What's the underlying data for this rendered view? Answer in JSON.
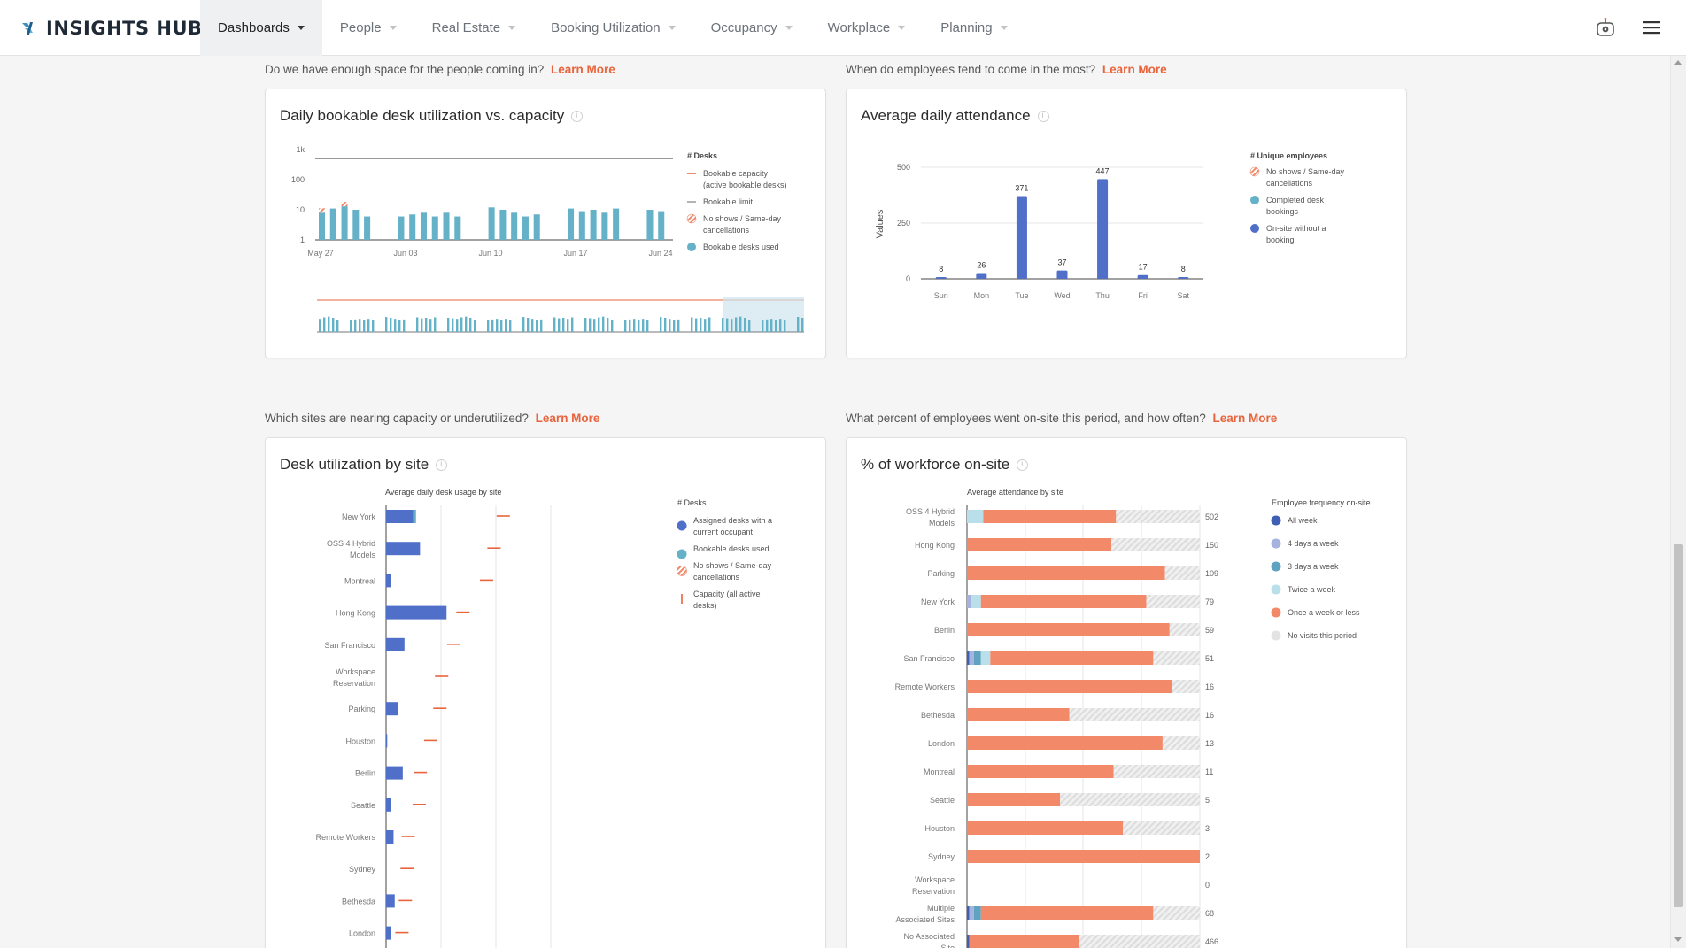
{
  "app": {
    "brand": "INSIGHTS HUB"
  },
  "nav": {
    "items": [
      {
        "label": "Dashboards",
        "active": true
      },
      {
        "label": "People",
        "active": false
      },
      {
        "label": "Real Estate",
        "active": false
      },
      {
        "label": "Booking Utilization",
        "active": false
      },
      {
        "label": "Occupancy",
        "active": false
      },
      {
        "label": "Workplace",
        "active": false
      },
      {
        "label": "Planning",
        "active": false
      }
    ]
  },
  "colors": {
    "accent": "#e8643c",
    "blue": "#4f6fc9",
    "teal": "#64b1c8",
    "orange": "#f08a6c",
    "gray": "#d8d8d8"
  },
  "sections": [
    {
      "question": "Do we have enough space for the people coming in?",
      "learn_more": "Learn More"
    },
    {
      "question": "When do employees tend to come in the most?",
      "learn_more": "Learn More"
    },
    {
      "question": "Which sites are nearing capacity or underutilized?",
      "learn_more": "Learn More"
    },
    {
      "question": "What percent of employees went on-site this period, and how often?",
      "learn_more": "Learn More"
    }
  ],
  "cards": {
    "desk_util": {
      "title": "Daily bookable desk utilization vs. capacity"
    },
    "attendance": {
      "title": "Average daily attendance"
    },
    "by_site": {
      "title": "Desk utilization by site"
    },
    "workforce": {
      "title": "% of workforce on-site"
    }
  },
  "chart_data": [
    {
      "type": "bar",
      "title": "Daily bookable desk utilization vs. capacity",
      "yscale": "log",
      "y_ticks": [
        "1k",
        "100",
        "10",
        "1"
      ],
      "x_ticks": [
        "May 27",
        "Jun 03",
        "Jun 10",
        "Jun 17",
        "Jun 24"
      ],
      "legend_title": "# Desks",
      "legend": [
        "Bookable capacity (active bookable desks)",
        "Bookable limit",
        "No shows / Same-day cancellations",
        "Bookable desks used"
      ],
      "series": [
        {
          "name": "Bookable desks used",
          "values": [
            8,
            11,
            13,
            10,
            6,
            0,
            0,
            6,
            7,
            8,
            6,
            8,
            6,
            0,
            0,
            12,
            10,
            8,
            6,
            7,
            0,
            0,
            11,
            9,
            10,
            8,
            11,
            0,
            0,
            10,
            9
          ]
        },
        {
          "name": "No shows / Same-day cancellations",
          "values": [
            1,
            0,
            2,
            0,
            0,
            0,
            0,
            0,
            0,
            0,
            0,
            0,
            0,
            0,
            0,
            0,
            0,
            0,
            0,
            0,
            0,
            0,
            0,
            0,
            0,
            0,
            0,
            0,
            0,
            0,
            0
          ]
        },
        {
          "name": "Bookable limit",
          "values": [
            500
          ]
        }
      ]
    },
    {
      "type": "bar",
      "title": "Average daily attendance",
      "ylabel": "Values",
      "ylim": [
        0,
        500
      ],
      "y_ticks": [
        "500",
        "250",
        "0"
      ],
      "categories": [
        "Sun",
        "Mon",
        "Tue",
        "Wed",
        "Thu",
        "Fri",
        "Sat"
      ],
      "values": [
        8,
        26,
        371,
        37,
        447,
        17,
        8
      ],
      "data_labels": [
        "8",
        "26",
        "371",
        "37",
        "447",
        "17",
        "8"
      ],
      "legend_title": "# Unique employees",
      "legend": [
        "No shows / Same-day cancellations",
        "Completed desk bookings",
        "On-site without a booking"
      ]
    },
    {
      "type": "bar",
      "title": "Average daily desk usage by site",
      "categories": [
        "New York",
        "OSS 4 Hybrid Models",
        "Montreal",
        "Hong Kong",
        "San Francisco",
        "Workspace Reservation",
        "Parking",
        "Houston",
        "Berlin",
        "Seattle",
        "Remote Workers",
        "Sydney",
        "Bethesda",
        "London"
      ],
      "series": [
        {
          "name": "Assigned desks with a current occupant",
          "values": [
            47,
            59,
            8,
            105,
            32,
            0,
            20,
            2,
            29,
            8,
            13,
            0,
            15,
            8
          ]
        },
        {
          "name": "Bookable desks used",
          "values": [
            5,
            0,
            0,
            0,
            0,
            0,
            0,
            0,
            0,
            0,
            0,
            0,
            0,
            0
          ]
        },
        {
          "name": "Capacity (all active desks)",
          "values": [
            192,
            176,
            163,
            122,
            106,
            85,
            82,
            66,
            48,
            46,
            27,
            25,
            22,
            16
          ]
        }
      ],
      "legend_title": "# Desks",
      "legend": [
        "Assigned desks with a current occupant",
        "Bookable desks used",
        "No shows / Same-day cancellations",
        "Capacity (all active desks)"
      ]
    },
    {
      "type": "bar",
      "title": "Average attendance by site",
      "stacked": "percent",
      "categories": [
        {
          "name": "OSS 4 Hybrid Models",
          "total": "502"
        },
        {
          "name": "Hong Kong",
          "total": "150"
        },
        {
          "name": "Parking",
          "total": "109"
        },
        {
          "name": "New York",
          "total": "79"
        },
        {
          "name": "Berlin",
          "total": "59"
        },
        {
          "name": "San Francisco",
          "total": "51"
        },
        {
          "name": "Remote Workers",
          "total": "16"
        },
        {
          "name": "Bethesda",
          "total": "16"
        },
        {
          "name": "London",
          "total": "13"
        },
        {
          "name": "Montreal",
          "total": "11"
        },
        {
          "name": "Seattle",
          "total": "5"
        },
        {
          "name": "Houston",
          "total": "3"
        },
        {
          "name": "Sydney",
          "total": "2"
        },
        {
          "name": "Workspace Reservation",
          "total": "0"
        },
        {
          "name": "Multiple Associated Sites",
          "total": "68"
        },
        {
          "name": "No Associated Site",
          "total": "466"
        }
      ],
      "series": [
        {
          "name": "All week",
          "values": [
            0,
            0,
            0,
            0,
            0,
            1,
            0,
            0,
            0,
            0,
            0,
            0,
            0,
            0,
            1,
            1
          ]
        },
        {
          "name": "4 days a week",
          "values": [
            0,
            0,
            0,
            2,
            0,
            2,
            0,
            0,
            0,
            0,
            0,
            0,
            0,
            0,
            2,
            0
          ]
        },
        {
          "name": "3 days a week",
          "values": [
            0,
            0,
            0,
            0,
            0,
            3,
            0,
            0,
            0,
            0,
            0,
            0,
            0,
            0,
            3,
            0
          ]
        },
        {
          "name": "Twice a week",
          "values": [
            7,
            0,
            0,
            4,
            0,
            4,
            0,
            0,
            0,
            0,
            0,
            0,
            0,
            0,
            0,
            0
          ]
        },
        {
          "name": "Once a week or less",
          "values": [
            57,
            62,
            85,
            71,
            87,
            70,
            88,
            44,
            84,
            63,
            40,
            67,
            100,
            0,
            74,
            47
          ]
        },
        {
          "name": "No visits this period",
          "values": [
            36,
            38,
            15,
            23,
            13,
            20,
            12,
            56,
            16,
            37,
            60,
            33,
            0,
            0,
            20,
            52
          ]
        }
      ],
      "legend_title": "Employee frequency on-site",
      "legend": [
        "All week",
        "4 days a week",
        "3 days a week",
        "Twice a week",
        "Once a week or less",
        "No visits this period"
      ]
    }
  ]
}
